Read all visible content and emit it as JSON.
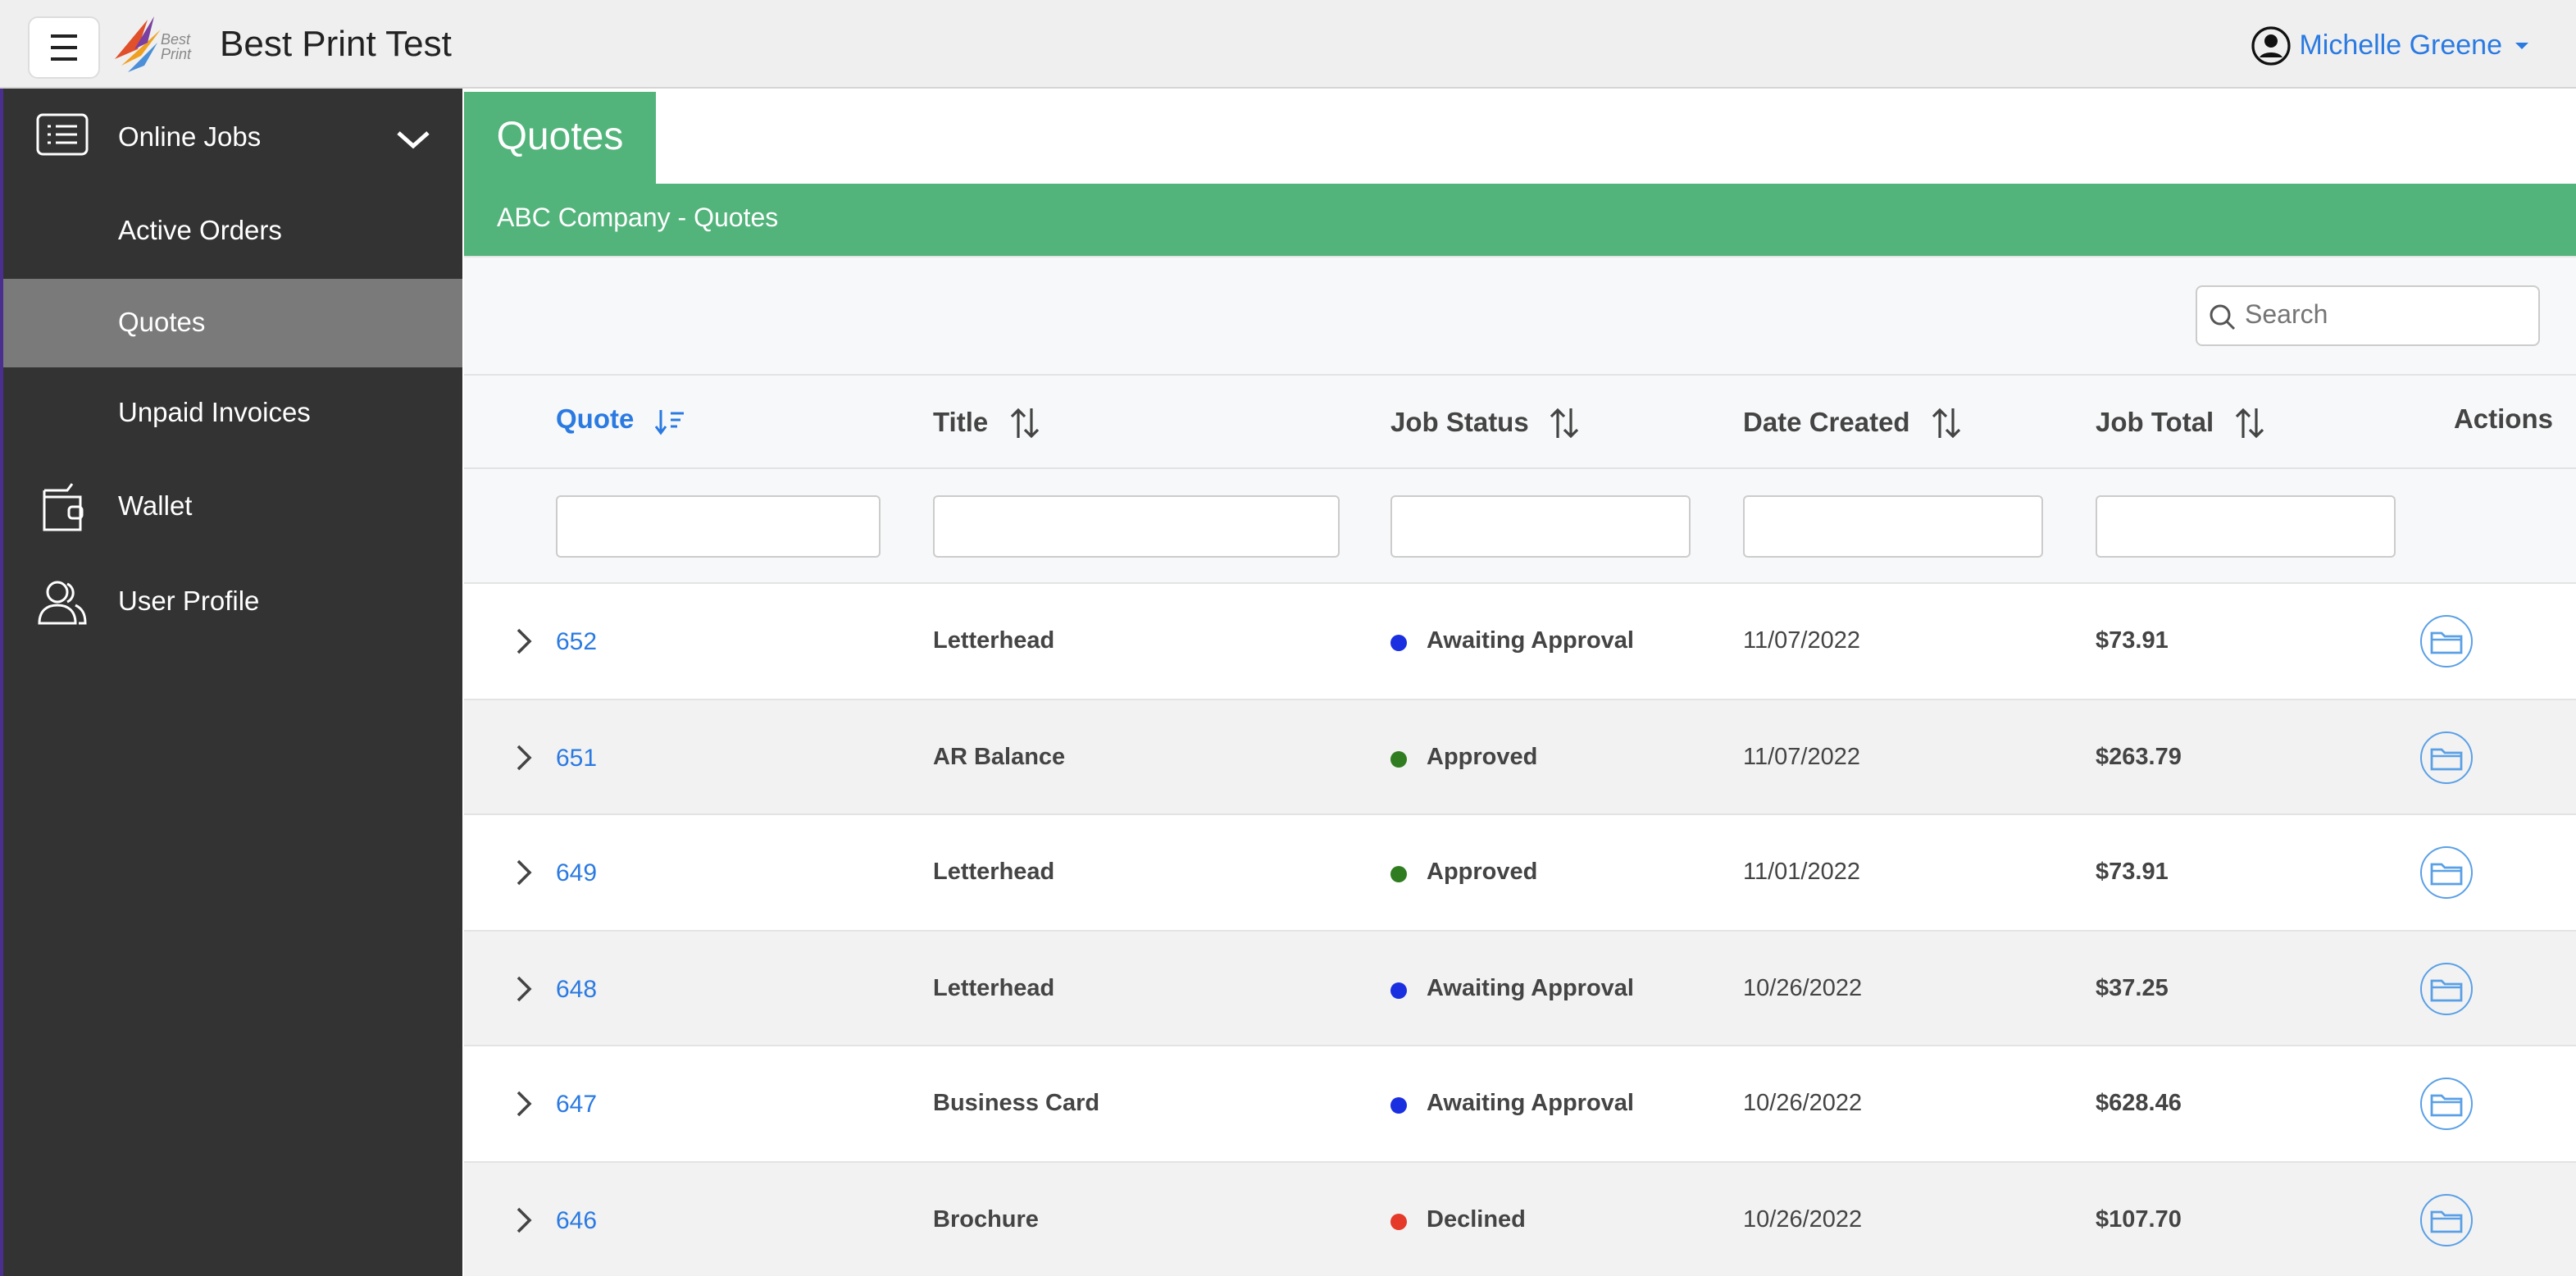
{
  "header": {
    "logo_text": "Best Print",
    "app_title": "Best Print Test",
    "user_name": "Michelle Greene"
  },
  "sidebar": {
    "items": [
      {
        "label": "Online Jobs",
        "icon": "list",
        "level": 0,
        "expanded": true
      },
      {
        "label": "Active Orders",
        "level": 1
      },
      {
        "label": "Quotes",
        "level": 1,
        "active": true
      },
      {
        "label": "Unpaid Invoices",
        "level": 1
      },
      {
        "label": "Wallet",
        "icon": "wallet",
        "level": 0
      },
      {
        "label": "User Profile",
        "icon": "users",
        "level": 0
      }
    ]
  },
  "page": {
    "title": "Quotes",
    "subtitle": "ABC Company - Quotes",
    "search_placeholder": "Search"
  },
  "table": {
    "columns": [
      "Quote",
      "Title",
      "Job Status",
      "Date Created",
      "Job Total",
      "Actions"
    ],
    "rows": [
      {
        "quote": "652",
        "title": "Letterhead",
        "status": "Awaiting Approval",
        "status_color": "#1a2fe0",
        "date": "11/07/2022",
        "total": "$73.91"
      },
      {
        "quote": "651",
        "title": "AR Balance",
        "status": "Approved",
        "status_color": "#2f7d20",
        "date": "11/07/2022",
        "total": "$263.79"
      },
      {
        "quote": "649",
        "title": "Letterhead",
        "status": "Approved",
        "status_color": "#2f7d20",
        "date": "11/01/2022",
        "total": "$73.91"
      },
      {
        "quote": "648",
        "title": "Letterhead",
        "status": "Awaiting Approval",
        "status_color": "#1a2fe0",
        "date": "10/26/2022",
        "total": "$37.25"
      },
      {
        "quote": "647",
        "title": "Business Card",
        "status": "Awaiting Approval",
        "status_color": "#1a2fe0",
        "date": "10/26/2022",
        "total": "$628.46"
      },
      {
        "quote": "646",
        "title": "Brochure",
        "status": "Declined",
        "status_color": "#e53a2a",
        "date": "10/26/2022",
        "total": "$107.70"
      }
    ]
  }
}
